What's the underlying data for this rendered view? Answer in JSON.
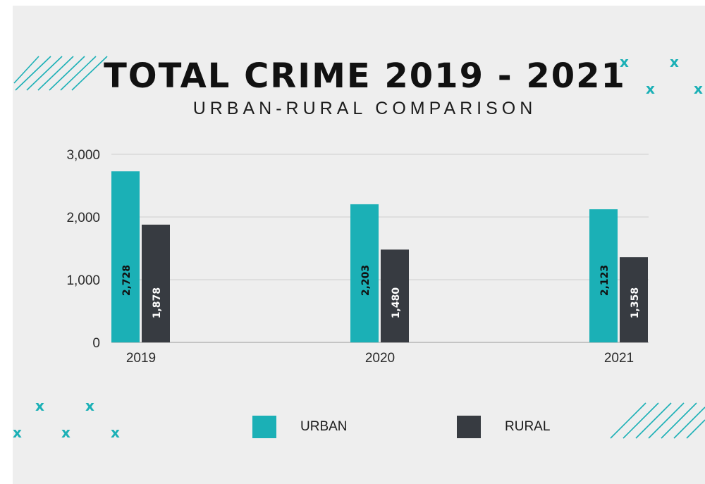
{
  "chart_data": {
    "type": "bar",
    "title": "TOTAL CRIME 2019 - 2021",
    "subtitle": "URBAN-RURAL COMPARISON",
    "categories": [
      "2019",
      "2020",
      "2021"
    ],
    "series": [
      {
        "name": "URBAN",
        "values": [
          2728,
          2203,
          2123
        ],
        "labels": [
          "2,728",
          "2,203",
          "2,123"
        ],
        "color": "#1bb0b6"
      },
      {
        "name": "RURAL",
        "values": [
          1878,
          1480,
          1358
        ],
        "labels": [
          "1,878",
          "1,480",
          "1,358"
        ],
        "color": "#373b41"
      }
    ],
    "yticks": [
      0,
      1000,
      2000,
      3000
    ],
    "ytick_labels": [
      "0",
      "1,000",
      "2,000",
      "3,000"
    ],
    "ylim": [
      0,
      3000
    ],
    "grid": true,
    "legend": "bottom"
  },
  "decor": {
    "accent": "#1bb0b6",
    "x_glyph": "x"
  }
}
